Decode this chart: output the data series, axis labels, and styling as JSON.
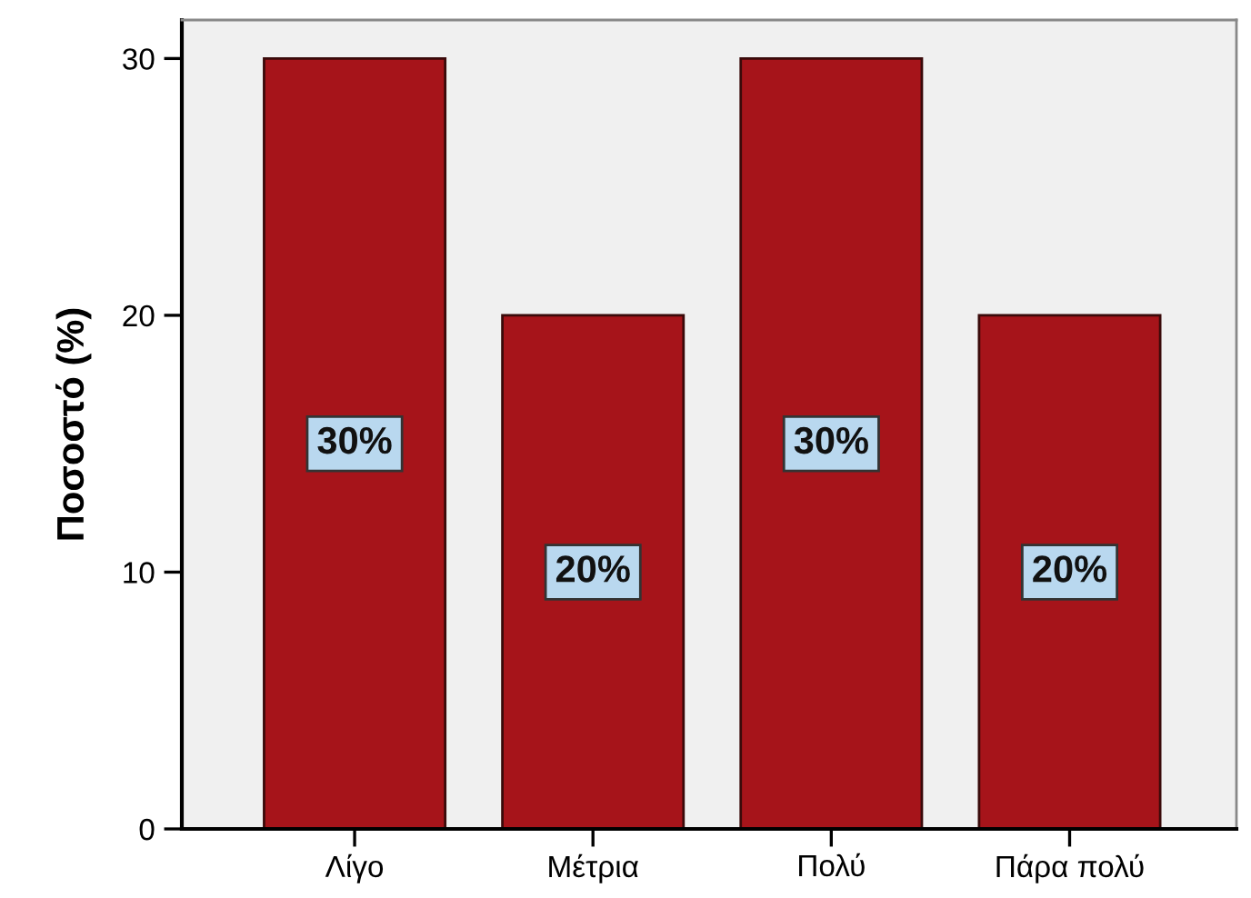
{
  "chart_data": {
    "type": "bar",
    "ylabel": "Ποσοστό (%)",
    "categories": [
      "Λίγο",
      "Μέτρια",
      "Πολύ",
      "Πάρα πολύ"
    ],
    "values": [
      30,
      20,
      30,
      20
    ],
    "value_labels": [
      "30%",
      "20%",
      "30%",
      "20%"
    ],
    "color": "#a6141a",
    "ylim": [
      0,
      31.5
    ],
    "yticks": [
      0,
      10,
      20,
      30
    ],
    "grid": false,
    "legend": false
  }
}
